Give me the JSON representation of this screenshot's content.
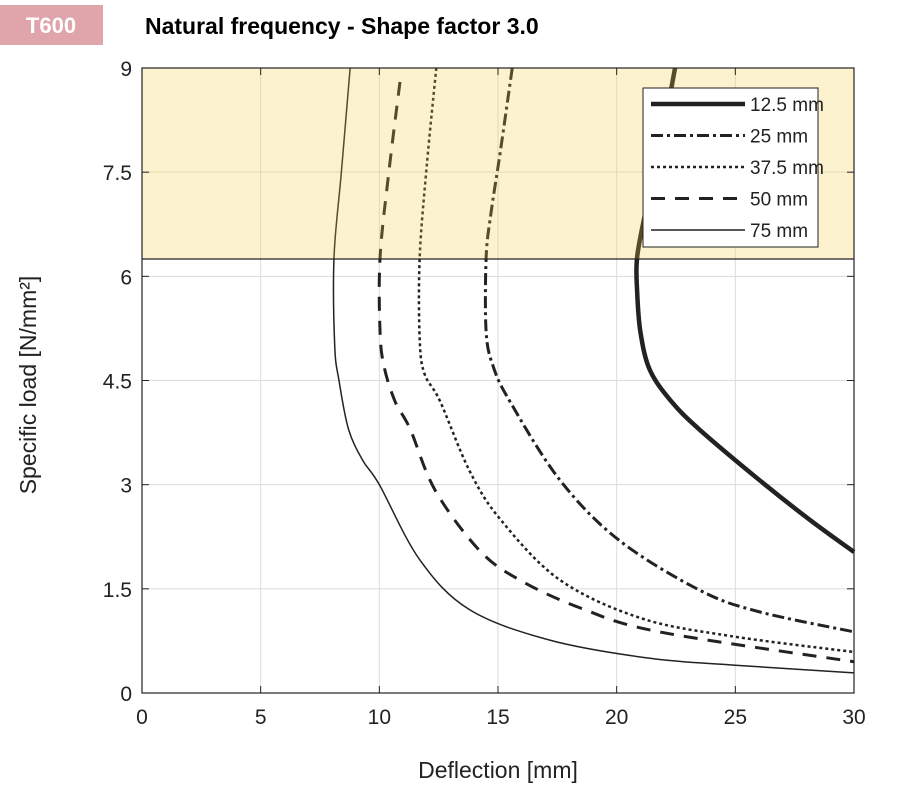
{
  "badge": {
    "text": "T600",
    "color": "#e0a4ab"
  },
  "chart_data": {
    "type": "line",
    "title": "Natural frequency - Shape factor 3.0",
    "xlabel": "Deflection  [mm]",
    "ylabel": "Specific load [N/mm²]",
    "xlim": [
      0,
      30
    ],
    "ylim": [
      0,
      9
    ],
    "xticks": [
      "0",
      "5",
      "10",
      "15",
      "20",
      "25",
      "30"
    ],
    "yticks": [
      "0",
      "1.5",
      "3",
      "4.5",
      "6",
      "7.5",
      "9"
    ],
    "grid": true,
    "legend_position": "top-right",
    "highlight_band": {
      "y_from": 6.25,
      "y_to": 9,
      "color": "#fcf2ce"
    },
    "series": [
      {
        "name": "12.5 mm",
        "style": "solid-thick",
        "x": [
          22.46,
          21.8,
          21.2,
          20.86,
          20.86,
          21.0,
          21.4,
          22.3,
          23.5,
          26.0,
          28.15,
          30.0
        ],
        "y": [
          9.0,
          7.8,
          6.9,
          6.27,
          5.8,
          5.2,
          4.65,
          4.2,
          3.79,
          3.07,
          2.49,
          2.03
        ]
      },
      {
        "name": "25 mm",
        "style": "dash-dot",
        "x": [
          15.6,
          15.1,
          14.7,
          14.5,
          14.5,
          14.8,
          15.5,
          17.6,
          20.1,
          23.5,
          26.0,
          30.0
        ],
        "y": [
          9.0,
          7.8,
          6.9,
          6.27,
          5.2,
          4.7,
          4.2,
          3.07,
          2.2,
          1.48,
          1.17,
          0.88
        ]
      },
      {
        "name": "37.5 mm",
        "style": "dotted",
        "x": [
          12.4,
          12.0,
          11.7,
          11.7,
          11.9,
          12.56,
          13.8,
          15.1,
          17.6,
          21.0,
          24.8,
          30.0
        ],
        "y": [
          9.0,
          7.6,
          6.27,
          5.1,
          4.6,
          4.2,
          3.2,
          2.5,
          1.63,
          1.08,
          0.82,
          0.59
        ]
      },
      {
        "name": "50 mm",
        "style": "dashed",
        "x": [
          10.87,
          10.4,
          10.03,
          10.03,
          10.2,
          10.66,
          11.3,
          12.35,
          14.2,
          15.9,
          18.5,
          21.8,
          30.0
        ],
        "y": [
          8.8,
          7.5,
          6.27,
          5.2,
          4.7,
          4.2,
          3.8,
          2.92,
          2.06,
          1.63,
          1.22,
          0.88,
          0.45
        ]
      },
      {
        "name": "75 mm",
        "style": "solid-thin",
        "x": [
          8.77,
          8.4,
          8.09,
          8.12,
          8.3,
          8.7,
          9.3,
          10.0,
          11.7,
          13.8,
          17.2,
          21.4,
          25.0,
          30.0
        ],
        "y": [
          9.0,
          7.5,
          6.27,
          5.0,
          4.5,
          3.8,
          3.35,
          3.0,
          1.92,
          1.2,
          0.76,
          0.5,
          0.4,
          0.29
        ]
      }
    ]
  }
}
